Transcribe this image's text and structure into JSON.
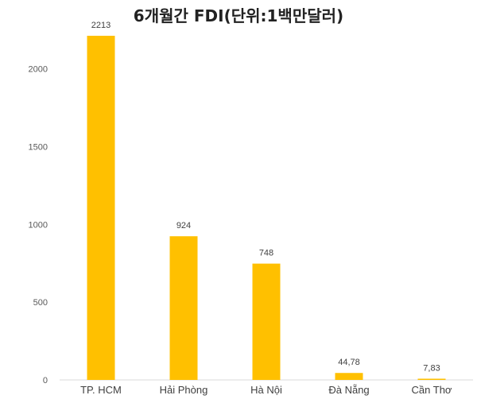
{
  "chart_data": {
    "type": "bar",
    "title": "6개월간 FDI(단위:1백만달러)",
    "categories": [
      "TP. HCM",
      "Hải Phòng",
      "Hà Nội",
      "Đà Nẵng",
      "Cần Thơ"
    ],
    "values": [
      2213,
      924,
      748,
      44.78,
      7.83
    ],
    "value_labels": [
      "2213",
      "924",
      "748",
      "44,78",
      "7,83"
    ],
    "y_ticks": [
      0,
      500,
      1000,
      1500,
      2000
    ],
    "y_tick_labels": [
      "0",
      "500",
      "1000",
      "1500",
      "2000"
    ],
    "ylim": [
      0,
      2300
    ],
    "grid": false,
    "legend": "none",
    "bar_color": "#FFC000"
  }
}
